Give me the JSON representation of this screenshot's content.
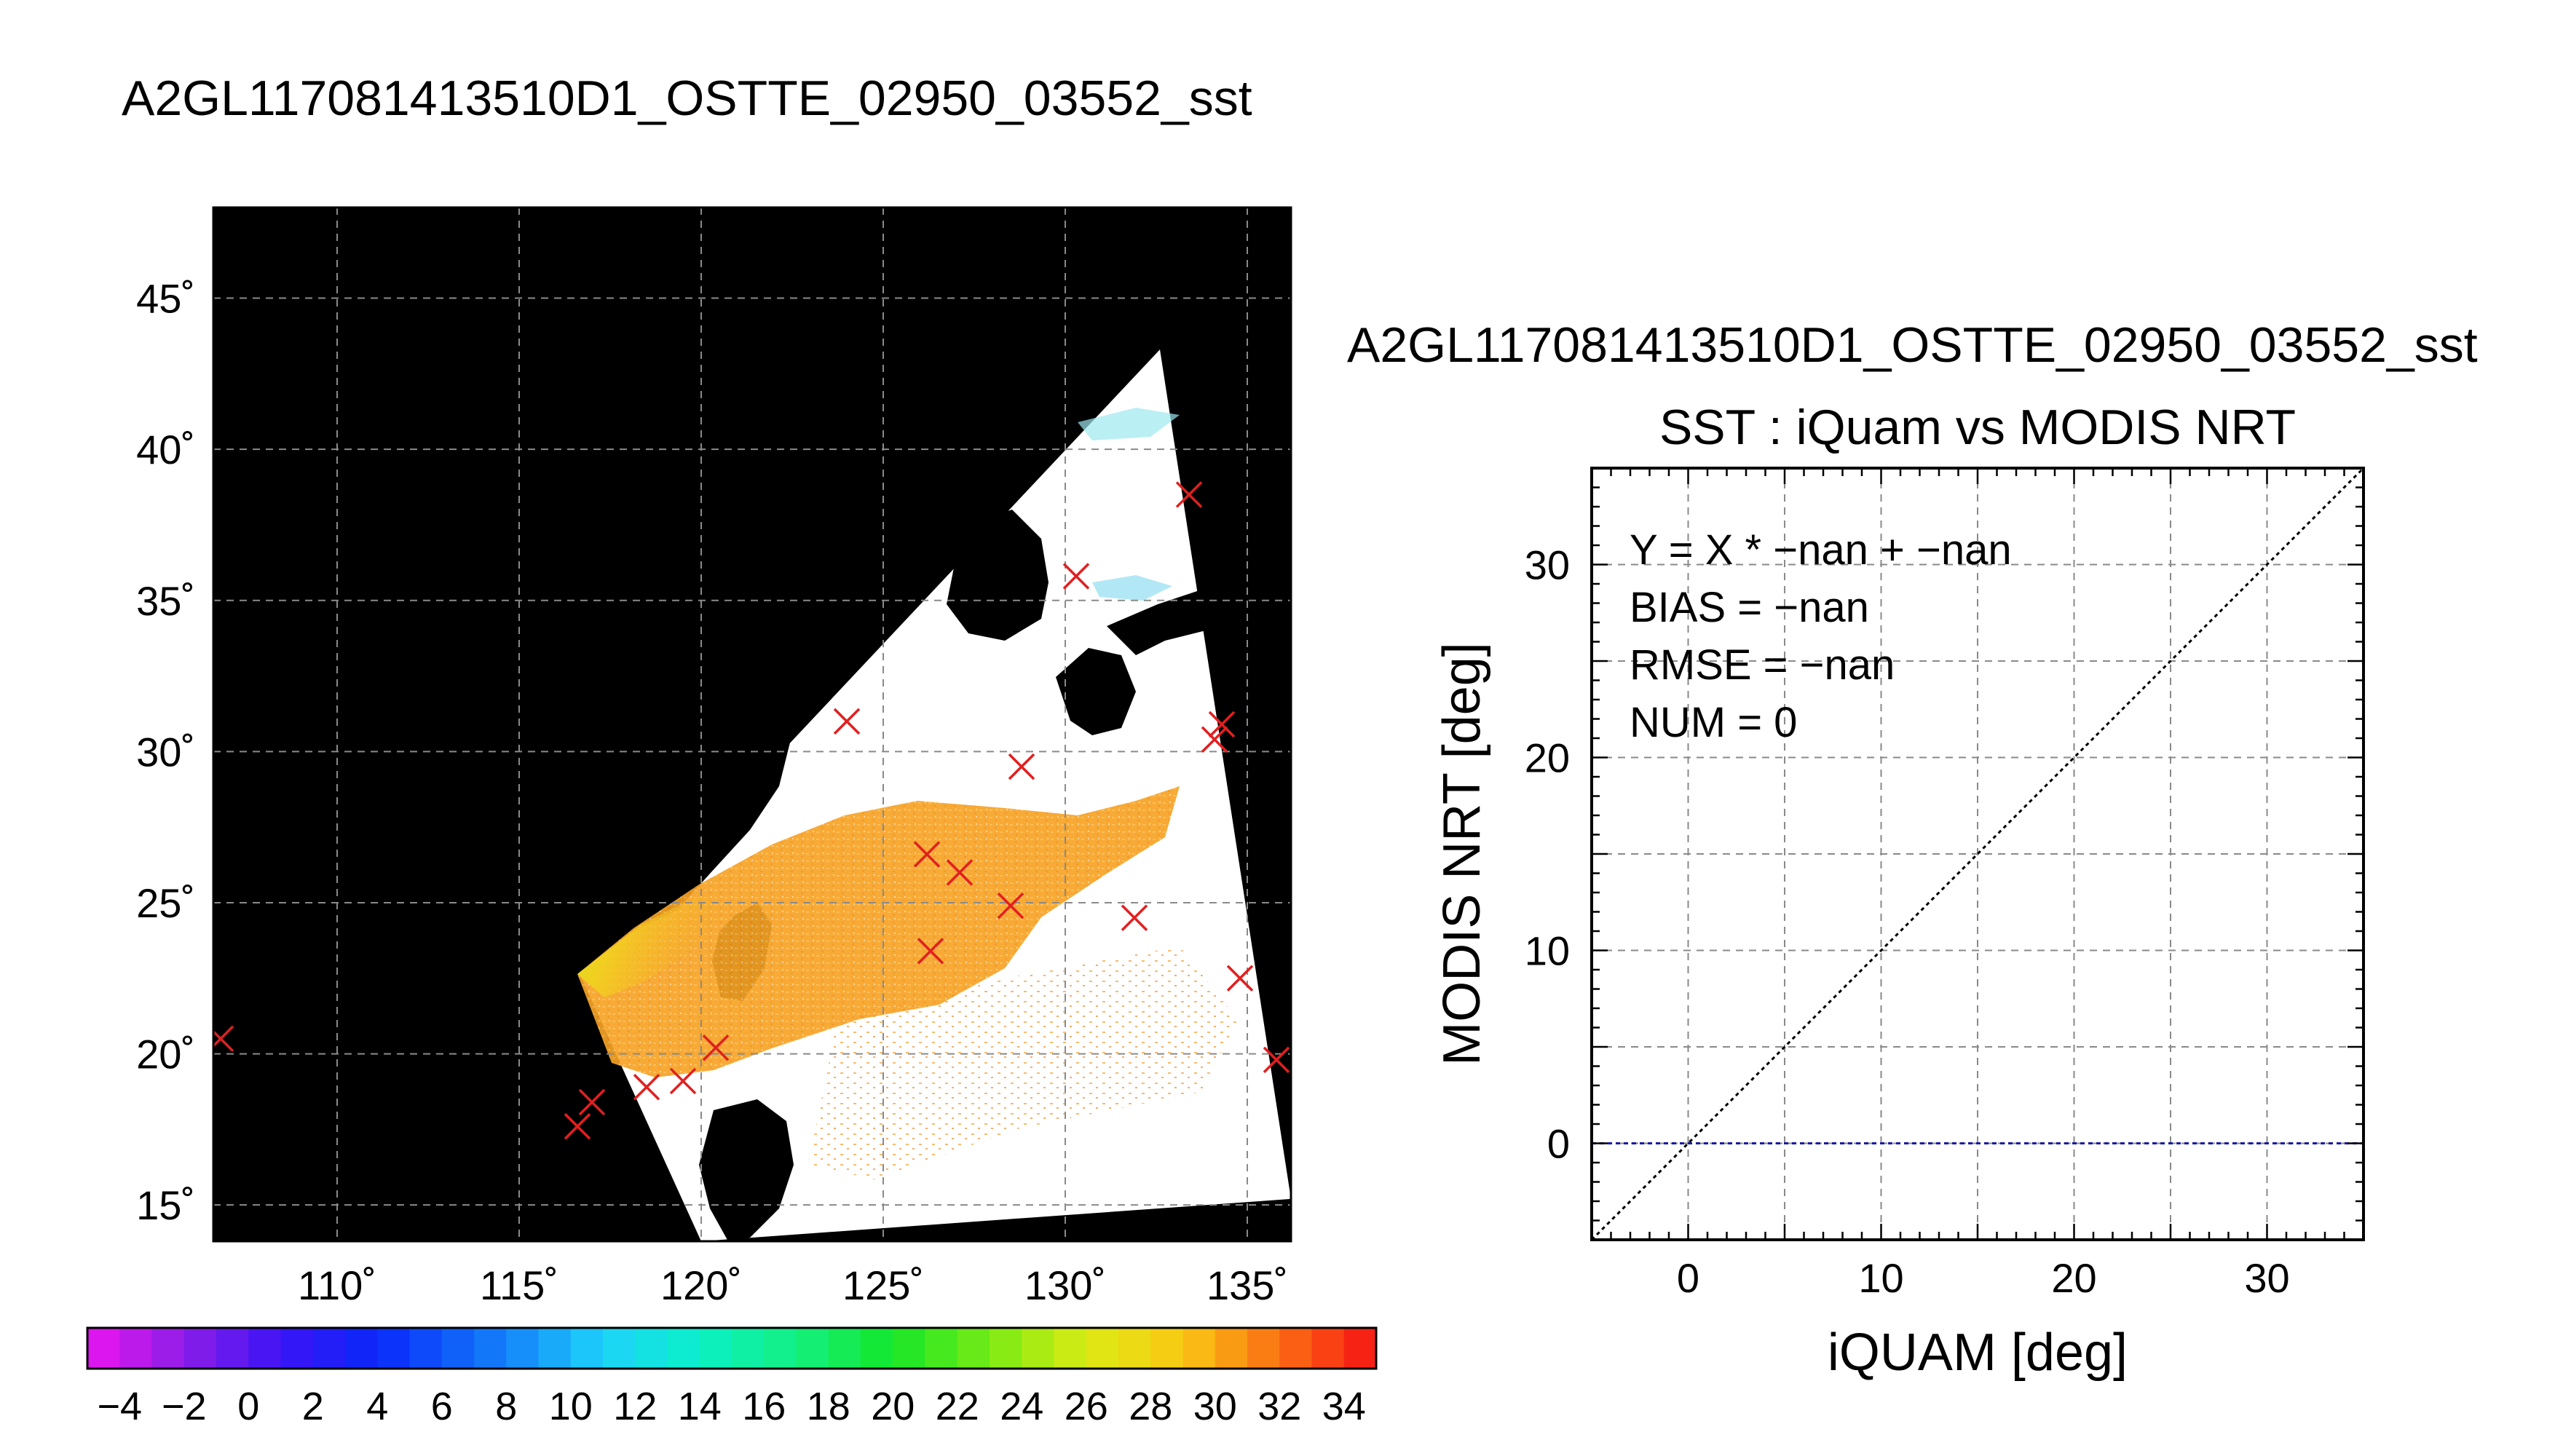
{
  "page": {
    "map_title": "A2GL117081413510D1_OSTTE_02950_03552_sst",
    "scatter_title": "A2GL117081413510D1_OSTTE_02950_03552_sst"
  },
  "colors": {
    "background": "#ffffff",
    "land": "#000000",
    "grid": "#8a8a8a",
    "marker": "#e02020",
    "identity_line": "#000000",
    "zero_line": "#1a1aa8",
    "swath_fill": "#ffffff"
  },
  "chart_data": [
    {
      "type": "map",
      "title": "A2GL117081413510D1_OSTTE_02950_03552_sst",
      "x_ticks": [
        110,
        115,
        120,
        125,
        130,
        135
      ],
      "x_tick_labels": [
        "110˚",
        "115˚",
        "120˚",
        "125˚",
        "130˚",
        "135˚"
      ],
      "y_ticks": [
        15,
        20,
        25,
        30,
        35,
        40,
        45
      ],
      "y_tick_labels": [
        "15˚",
        "20˚",
        "25˚",
        "30˚",
        "35˚",
        "40˚",
        "45˚"
      ],
      "lon_range": [
        106.6,
        136.2
      ],
      "lat_range": [
        13.8,
        48.0
      ],
      "grid": true,
      "swath_corners_lon_lat": [
        [
          116.6,
          22.8
        ],
        [
          132.6,
          43.3
        ],
        [
          136.2,
          15.2
        ],
        [
          120.0,
          13.8
        ]
      ],
      "buoy_markers_lon_lat": [
        [
          106.8,
          20.5
        ],
        [
          133.4,
          38.5
        ],
        [
          130.3,
          35.8
        ],
        [
          124.0,
          31.0
        ],
        [
          128.8,
          29.5
        ],
        [
          134.3,
          30.9
        ],
        [
          134.1,
          30.4
        ],
        [
          126.2,
          26.6
        ],
        [
          127.1,
          26.0
        ],
        [
          128.5,
          24.9
        ],
        [
          126.3,
          23.4
        ],
        [
          131.9,
          24.5
        ],
        [
          134.8,
          22.5
        ],
        [
          120.4,
          20.2
        ],
        [
          119.5,
          19.1
        ],
        [
          118.5,
          18.9
        ],
        [
          117.0,
          18.4
        ],
        [
          116.6,
          17.6
        ],
        [
          135.8,
          19.8
        ]
      ],
      "colorbar": {
        "min": -5,
        "max": 35,
        "step": 1,
        "tick_values": [
          -4,
          -2,
          0,
          2,
          4,
          6,
          8,
          10,
          12,
          14,
          16,
          18,
          20,
          22,
          24,
          26,
          28,
          30,
          32,
          34
        ],
        "tick_labels": [
          "−4",
          "−2",
          "0",
          "2",
          "4",
          "6",
          "8",
          "10",
          "12",
          "14",
          "16",
          "18",
          "20",
          "22",
          "24",
          "26",
          "28",
          "30",
          "32",
          "34"
        ],
        "unit": ""
      }
    },
    {
      "type": "scatter",
      "title": "A2GL117081413510D1_OSTTE_02950_03552_sst",
      "subtitle": "SST : iQuam vs MODIS NRT",
      "xlabel": "iQUAM [deg]",
      "ylabel": "MODIS NRT [deg]",
      "xlim": [
        -5,
        35
      ],
      "ylim": [
        -5,
        35
      ],
      "x_ticks": [
        0,
        10,
        20,
        30
      ],
      "y_ticks": [
        0,
        10,
        20,
        30
      ],
      "grid_step": 5,
      "grid": true,
      "points": [],
      "reference_lines": [
        {
          "kind": "identity",
          "x": [
            -5,
            35
          ],
          "y": [
            -5,
            35
          ]
        },
        {
          "kind": "zero",
          "x": [
            -5,
            35
          ],
          "y": [
            0,
            0
          ]
        }
      ],
      "stats": [
        "Y = X * −nan + −nan",
        "BIAS = −nan",
        "RMSE = −nan",
        "NUM = 0"
      ]
    }
  ]
}
